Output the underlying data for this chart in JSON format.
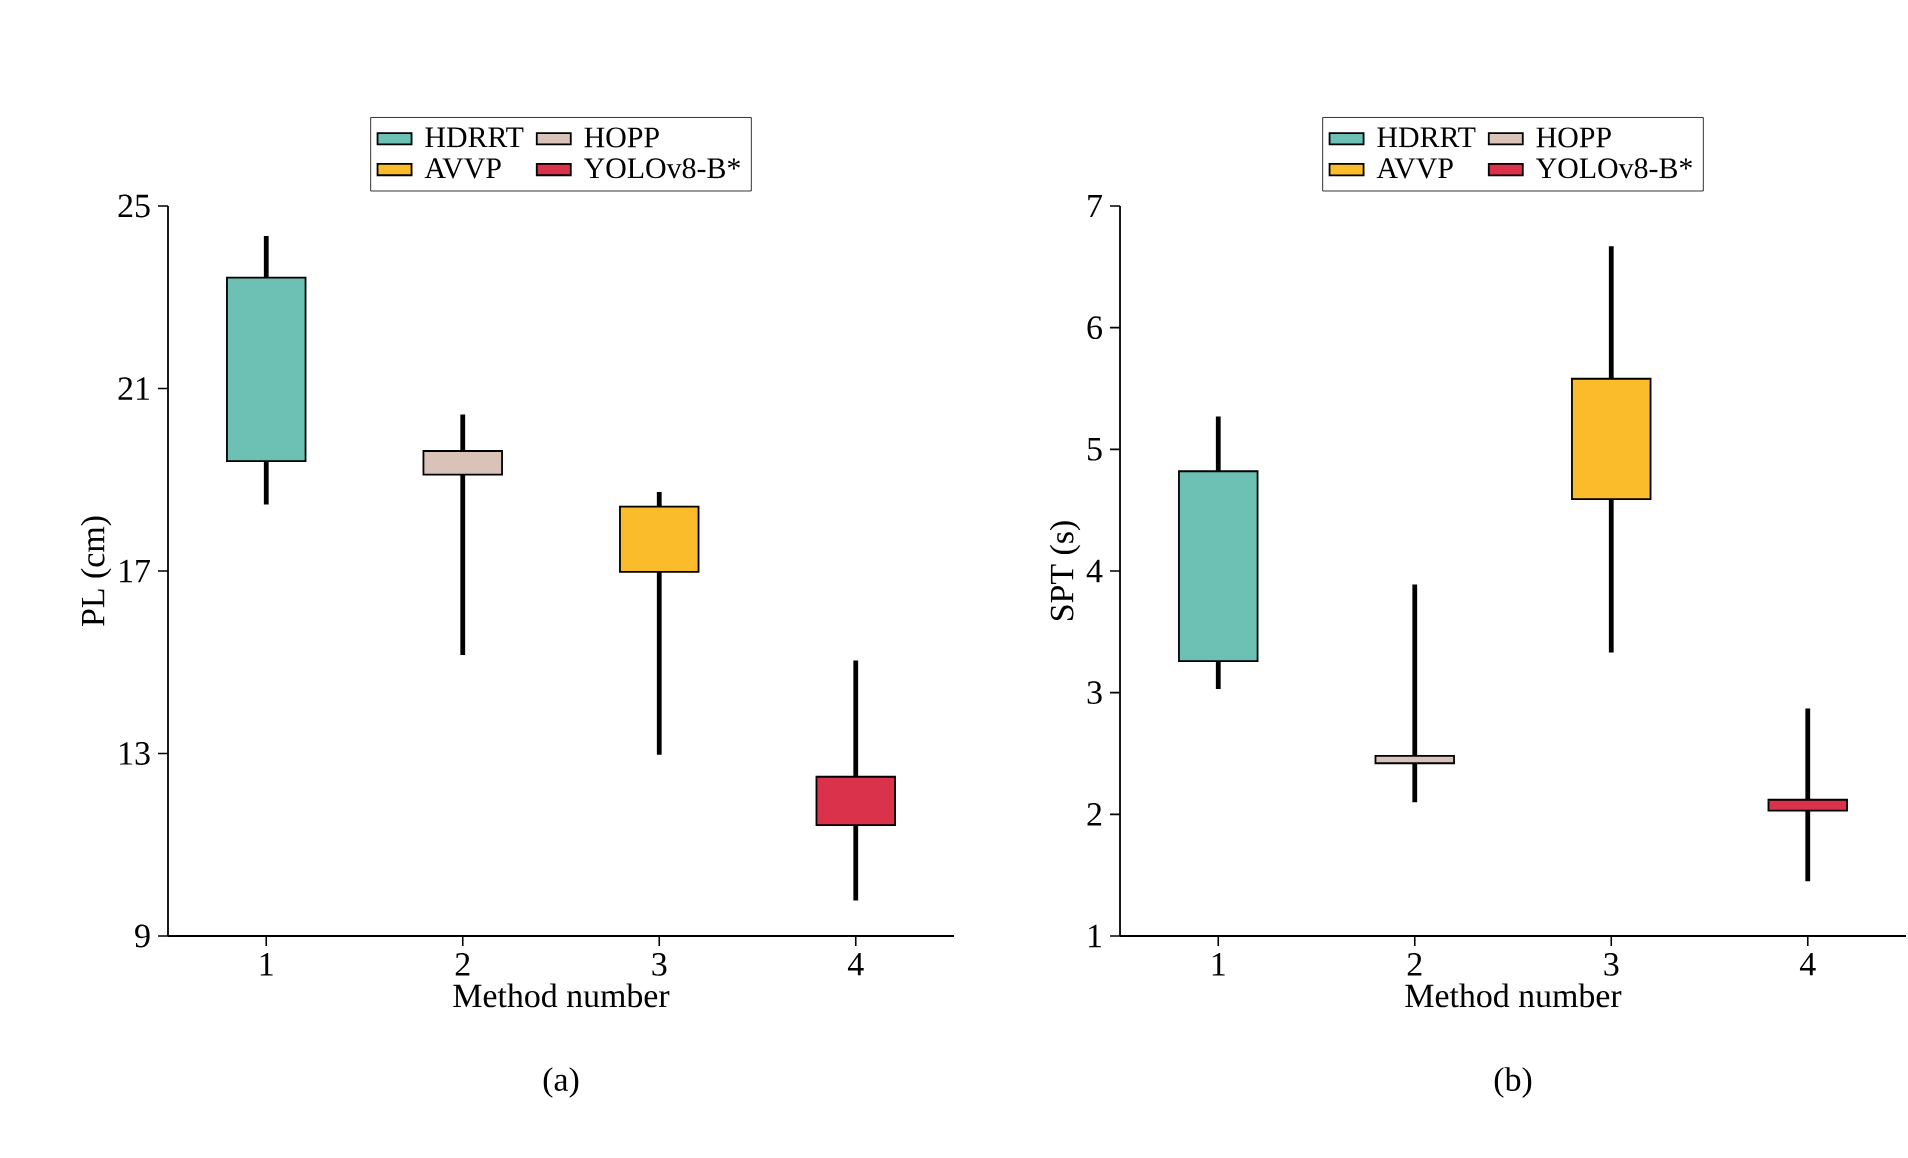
{
  "chart_data": [
    {
      "type": "box",
      "categories": [
        "1",
        "2",
        "3",
        "4"
      ],
      "xlabel": "Method number",
      "ylabel": "PL (cm)",
      "ylim": [
        9,
        25
      ],
      "yticks": [
        9,
        13,
        17,
        21,
        25
      ],
      "legend": "top",
      "grid": false,
      "annotations": [
        "(a)"
      ],
      "series": [
        {
          "name": "HDRRT",
          "color": "#6dc0b4",
          "boxes": [
            {
              "low": 18.46,
              "q1": 19.41,
              "q3": 23.43,
              "high": 24.34
            },
            null,
            null,
            null
          ]
        },
        {
          "name": "HOPP",
          "color": "#d9c2b8",
          "boxes": [
            null,
            {
              "low": 15.16,
              "q1": 19.11,
              "q3": 19.63,
              "high": 20.43
            },
            null,
            null
          ]
        },
        {
          "name": "AVVP",
          "color": "#fbbc2b",
          "boxes": [
            null,
            null,
            {
              "low": 12.97,
              "q1": 16.98,
              "q3": 18.41,
              "high": 18.73
            },
            null
          ]
        },
        {
          "name": "YOLOv8-B*",
          "color": "#d9324a",
          "boxes": [
            null,
            null,
            null,
            {
              "low": 9.78,
              "q1": 11.43,
              "q3": 12.49,
              "high": 15.04
            }
          ]
        }
      ]
    },
    {
      "type": "box",
      "categories": [
        "1",
        "2",
        "3",
        "4"
      ],
      "xlabel": "Method number",
      "ylabel": "SPT (s)",
      "ylim": [
        1,
        7
      ],
      "yticks": [
        1,
        2,
        3,
        4,
        5,
        6,
        7
      ],
      "legend": "top",
      "grid": false,
      "annotations": [
        "(b)"
      ],
      "series": [
        {
          "name": "HDRRT",
          "color": "#6dc0b4",
          "boxes": [
            {
              "low": 3.03,
              "q1": 3.26,
              "q3": 4.82,
              "high": 5.27
            },
            null,
            null,
            null
          ]
        },
        {
          "name": "HOPP",
          "color": "#d9c2b8",
          "boxes": [
            null,
            {
              "low": 2.1,
              "q1": 2.42,
              "q3": 2.48,
              "high": 3.89
            },
            null,
            null
          ]
        },
        {
          "name": "AVVP",
          "color": "#fbbc2b",
          "boxes": [
            null,
            null,
            {
              "low": 3.33,
              "q1": 4.59,
              "q3": 5.58,
              "high": 6.67
            },
            null
          ]
        },
        {
          "name": "YOLOv8-B*",
          "color": "#d9324a",
          "boxes": [
            null,
            null,
            null,
            {
              "low": 1.45,
              "q1": 2.03,
              "q3": 2.12,
              "high": 2.87
            }
          ]
        }
      ]
    }
  ]
}
